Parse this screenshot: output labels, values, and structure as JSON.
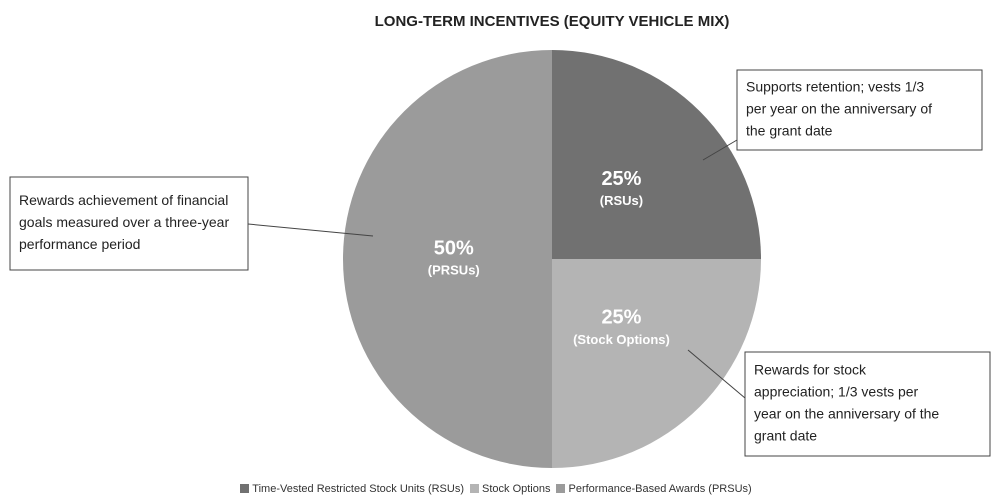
{
  "chart_data": {
    "type": "pie",
    "title": "LONG-TERM INCENTIVES (EQUITY VEHICLE MIX)",
    "categories": [
      "Time-Vested Restricted Stock Units (RSUs)",
      "Stock Options",
      "Performance-Based Awards (PRSUs)"
    ],
    "values": [
      25,
      25,
      50
    ],
    "value_labels": [
      "25%",
      "25%",
      "50%"
    ],
    "slice_labels": [
      "(RSUs)",
      "(Stock Options)",
      "(PRSUs)"
    ],
    "colors": [
      "#717171",
      "#b4b4b4",
      "#9b9b9b"
    ],
    "annotations": [
      {
        "lines": [
          "Supports retention; vests 1/3",
          "per year on the anniversary of",
          "the grant date"
        ]
      },
      {
        "lines": [
          "Rewards for stock",
          "appreciation; 1/3 vests per",
          "year on the anniversary of the",
          "grant date"
        ]
      },
      {
        "lines": [
          "Rewards achievement of financial",
          "goals measured over a three-year",
          "performance period"
        ]
      }
    ]
  }
}
